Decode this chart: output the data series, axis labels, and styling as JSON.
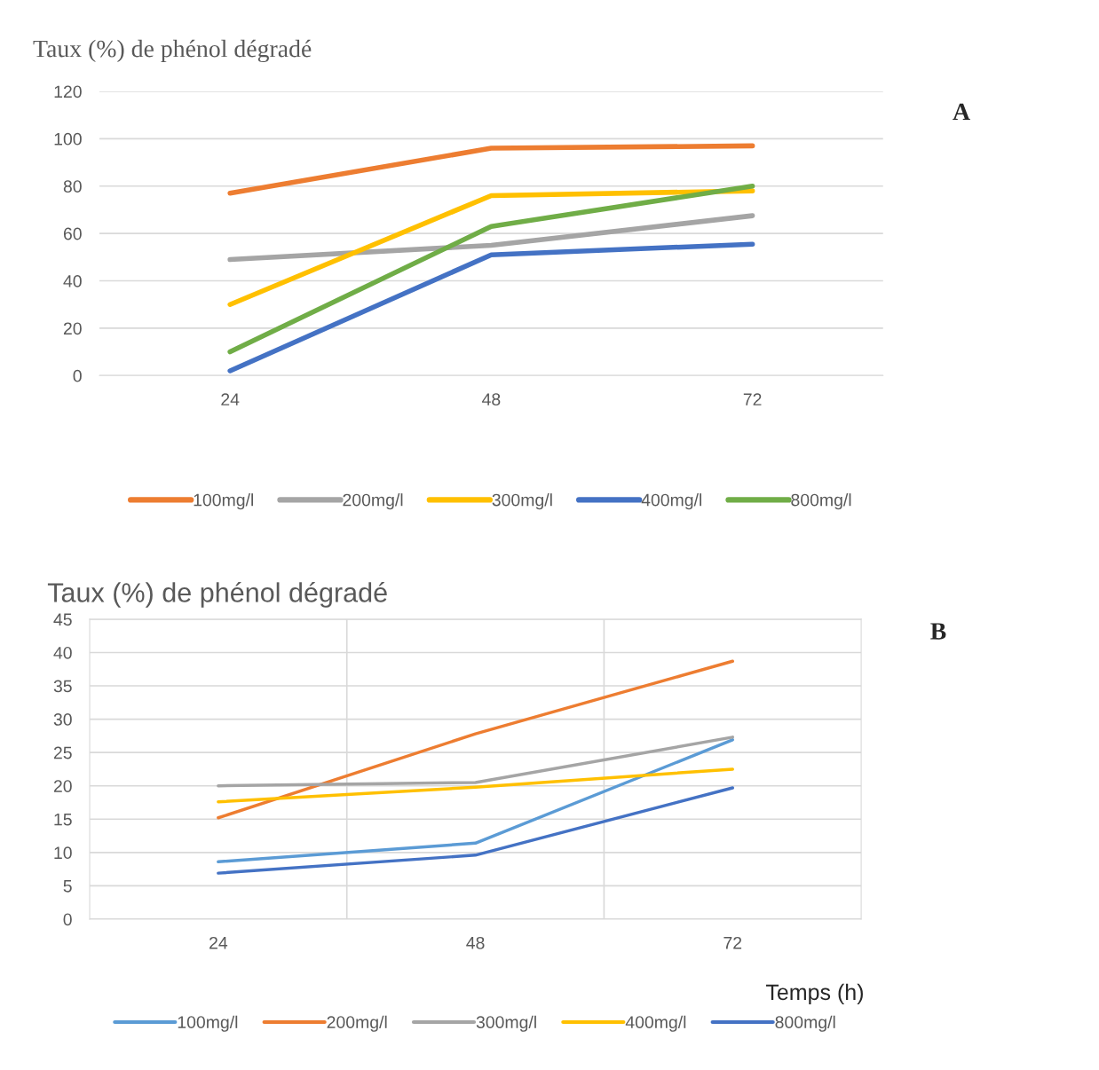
{
  "chart_data": [
    {
      "type": "line",
      "title": "Taux (%) de phénol dégradé",
      "categories": [
        "24",
        "48",
        "72"
      ],
      "ylim": [
        0,
        120
      ],
      "yticks": [
        0,
        20,
        40,
        60,
        80,
        100,
        120
      ],
      "grid": "y",
      "legend": "bottom",
      "marker": "none",
      "line_style": "solid",
      "annotations": [
        "A"
      ],
      "series": [
        {
          "name": "100mg/l",
          "color": "#ed7d31",
          "values": [
            77,
            96,
            97
          ]
        },
        {
          "name": "200mg/l",
          "color": "#a5a5a5",
          "values": [
            49,
            55,
            67.5
          ]
        },
        {
          "name": "300mg/l",
          "color": "#ffc000",
          "values": [
            30,
            76,
            78
          ]
        },
        {
          "name": "400mg/l",
          "color": "#4472c4",
          "values": [
            2,
            51,
            55.5
          ]
        },
        {
          "name": "800mg/l",
          "color": "#70ad47",
          "values": [
            10,
            63,
            80
          ]
        }
      ]
    },
    {
      "type": "line",
      "title": "Taux (%) de phénol dégradé",
      "xlabel": "Temps (h)",
      "categories": [
        "24",
        "48",
        "72"
      ],
      "ylim": [
        0,
        45
      ],
      "yticks": [
        0,
        5,
        10,
        15,
        20,
        25,
        30,
        35,
        40,
        45
      ],
      "grid": true,
      "legend": "bottom",
      "marker": "none",
      "line_style": "solid",
      "annotations": [
        "B"
      ],
      "series": [
        {
          "name": "100mg/l",
          "color": "#5b9bd5",
          "values": [
            8.6,
            11.4,
            26.9
          ]
        },
        {
          "name": "200mg/l",
          "color": "#ed7d31",
          "values": [
            15.2,
            27.8,
            38.7
          ]
        },
        {
          "name": "300mg/l",
          "color": "#a5a5a5",
          "values": [
            20,
            20.5,
            27.3
          ]
        },
        {
          "name": "400mg/l",
          "color": "#ffc000",
          "values": [
            17.6,
            19.8,
            22.5
          ]
        },
        {
          "name": "800mg/l",
          "color": "#4472c4",
          "values": [
            6.9,
            9.6,
            19.7
          ]
        }
      ]
    }
  ]
}
